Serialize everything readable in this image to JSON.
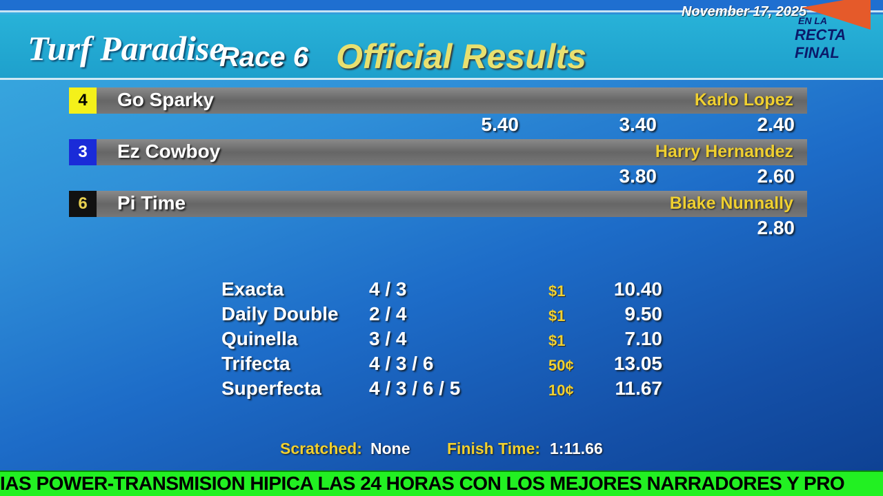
{
  "header": {
    "track": "Turf Paradise",
    "race": "Race 6",
    "title": "Official Results",
    "date": "November 17, 2025",
    "brand_top": "EN LA",
    "brand_bottom": "RECTA FINAL"
  },
  "finishers": [
    {
      "pp": "4",
      "pp_bg": "#f4f01a",
      "pp_fg": "#000",
      "horse": "Go Sparky",
      "jockey": "Karlo Lopez",
      "win": "5.40",
      "place": "3.40",
      "show": "2.40"
    },
    {
      "pp": "3",
      "pp_bg": "#1a2bd8",
      "pp_fg": "#fff",
      "horse": "Ez Cowboy",
      "jockey": "Harry Hernandez",
      "win": "",
      "place": "3.80",
      "show": "2.60"
    },
    {
      "pp": "6",
      "pp_bg": "#111",
      "pp_fg": "#e8d050",
      "horse": "Pi Time",
      "jockey": "Blake Nunnally",
      "win": "",
      "place": "",
      "show": "2.80"
    }
  ],
  "wagers": [
    {
      "name": "Exacta",
      "combo": "4 / 3",
      "base": "$1",
      "payout": "10.40"
    },
    {
      "name": "Daily Double",
      "combo": "2 / 4",
      "base": "$1",
      "payout": "9.50"
    },
    {
      "name": "Quinella",
      "combo": "3 / 4",
      "base": "$1",
      "payout": "7.10"
    },
    {
      "name": "Trifecta",
      "combo": "4 / 3 / 6",
      "base": "50¢",
      "payout": "13.05"
    },
    {
      "name": "Superfecta",
      "combo": "4 / 3 / 6 / 5",
      "base": "10¢",
      "payout": "11.67"
    }
  ],
  "footer": {
    "scratched_label": "Scratched:",
    "scratched_value": "None",
    "finish_label": "Finish Time:",
    "finish_value": "1:11.66"
  },
  "ticker": "IAS POWER-TRANSMISION HIPICA LAS 24 HORAS CON LOS MEJORES NARRADORES Y PRO"
}
